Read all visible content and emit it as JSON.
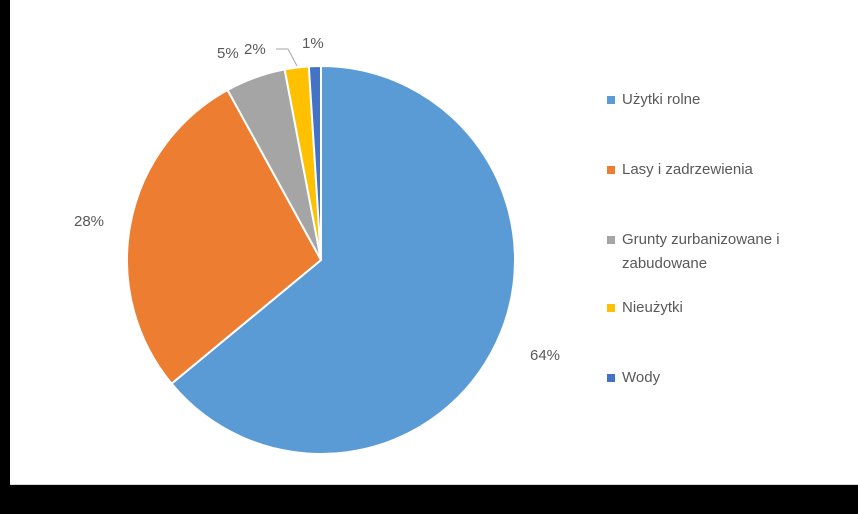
{
  "chart_data": {
    "type": "pie",
    "title": "",
    "categories": [
      "Użytki rolne",
      "Lasy i zadrzewienia",
      "Grunty zurbanizowane i zabudowane",
      "Nieużytki",
      "Wody"
    ],
    "values": [
      64,
      28,
      5,
      2,
      1
    ],
    "value_labels": [
      "64%",
      "28%",
      "5%",
      "2%",
      "1%"
    ],
    "colors": [
      "#5b9bd5",
      "#ed7d31",
      "#a5a5a5",
      "#ffc000",
      "#4472c4"
    ],
    "legend_position": "right",
    "start_angle_deg": 0,
    "direction": "clockwise"
  },
  "legend": {
    "items": [
      {
        "label": "Użytki rolne",
        "color": "#5b9bd5"
      },
      {
        "label": "Lasy i zadrzewienia",
        "color": "#ed7d31"
      },
      {
        "label": "Grunty zurbanizowane i zabudowane",
        "color": "#a5a5a5"
      },
      {
        "label": "Nieużytki",
        "color": "#ffc000"
      },
      {
        "label": "Wody",
        "color": "#4472c4"
      }
    ]
  }
}
